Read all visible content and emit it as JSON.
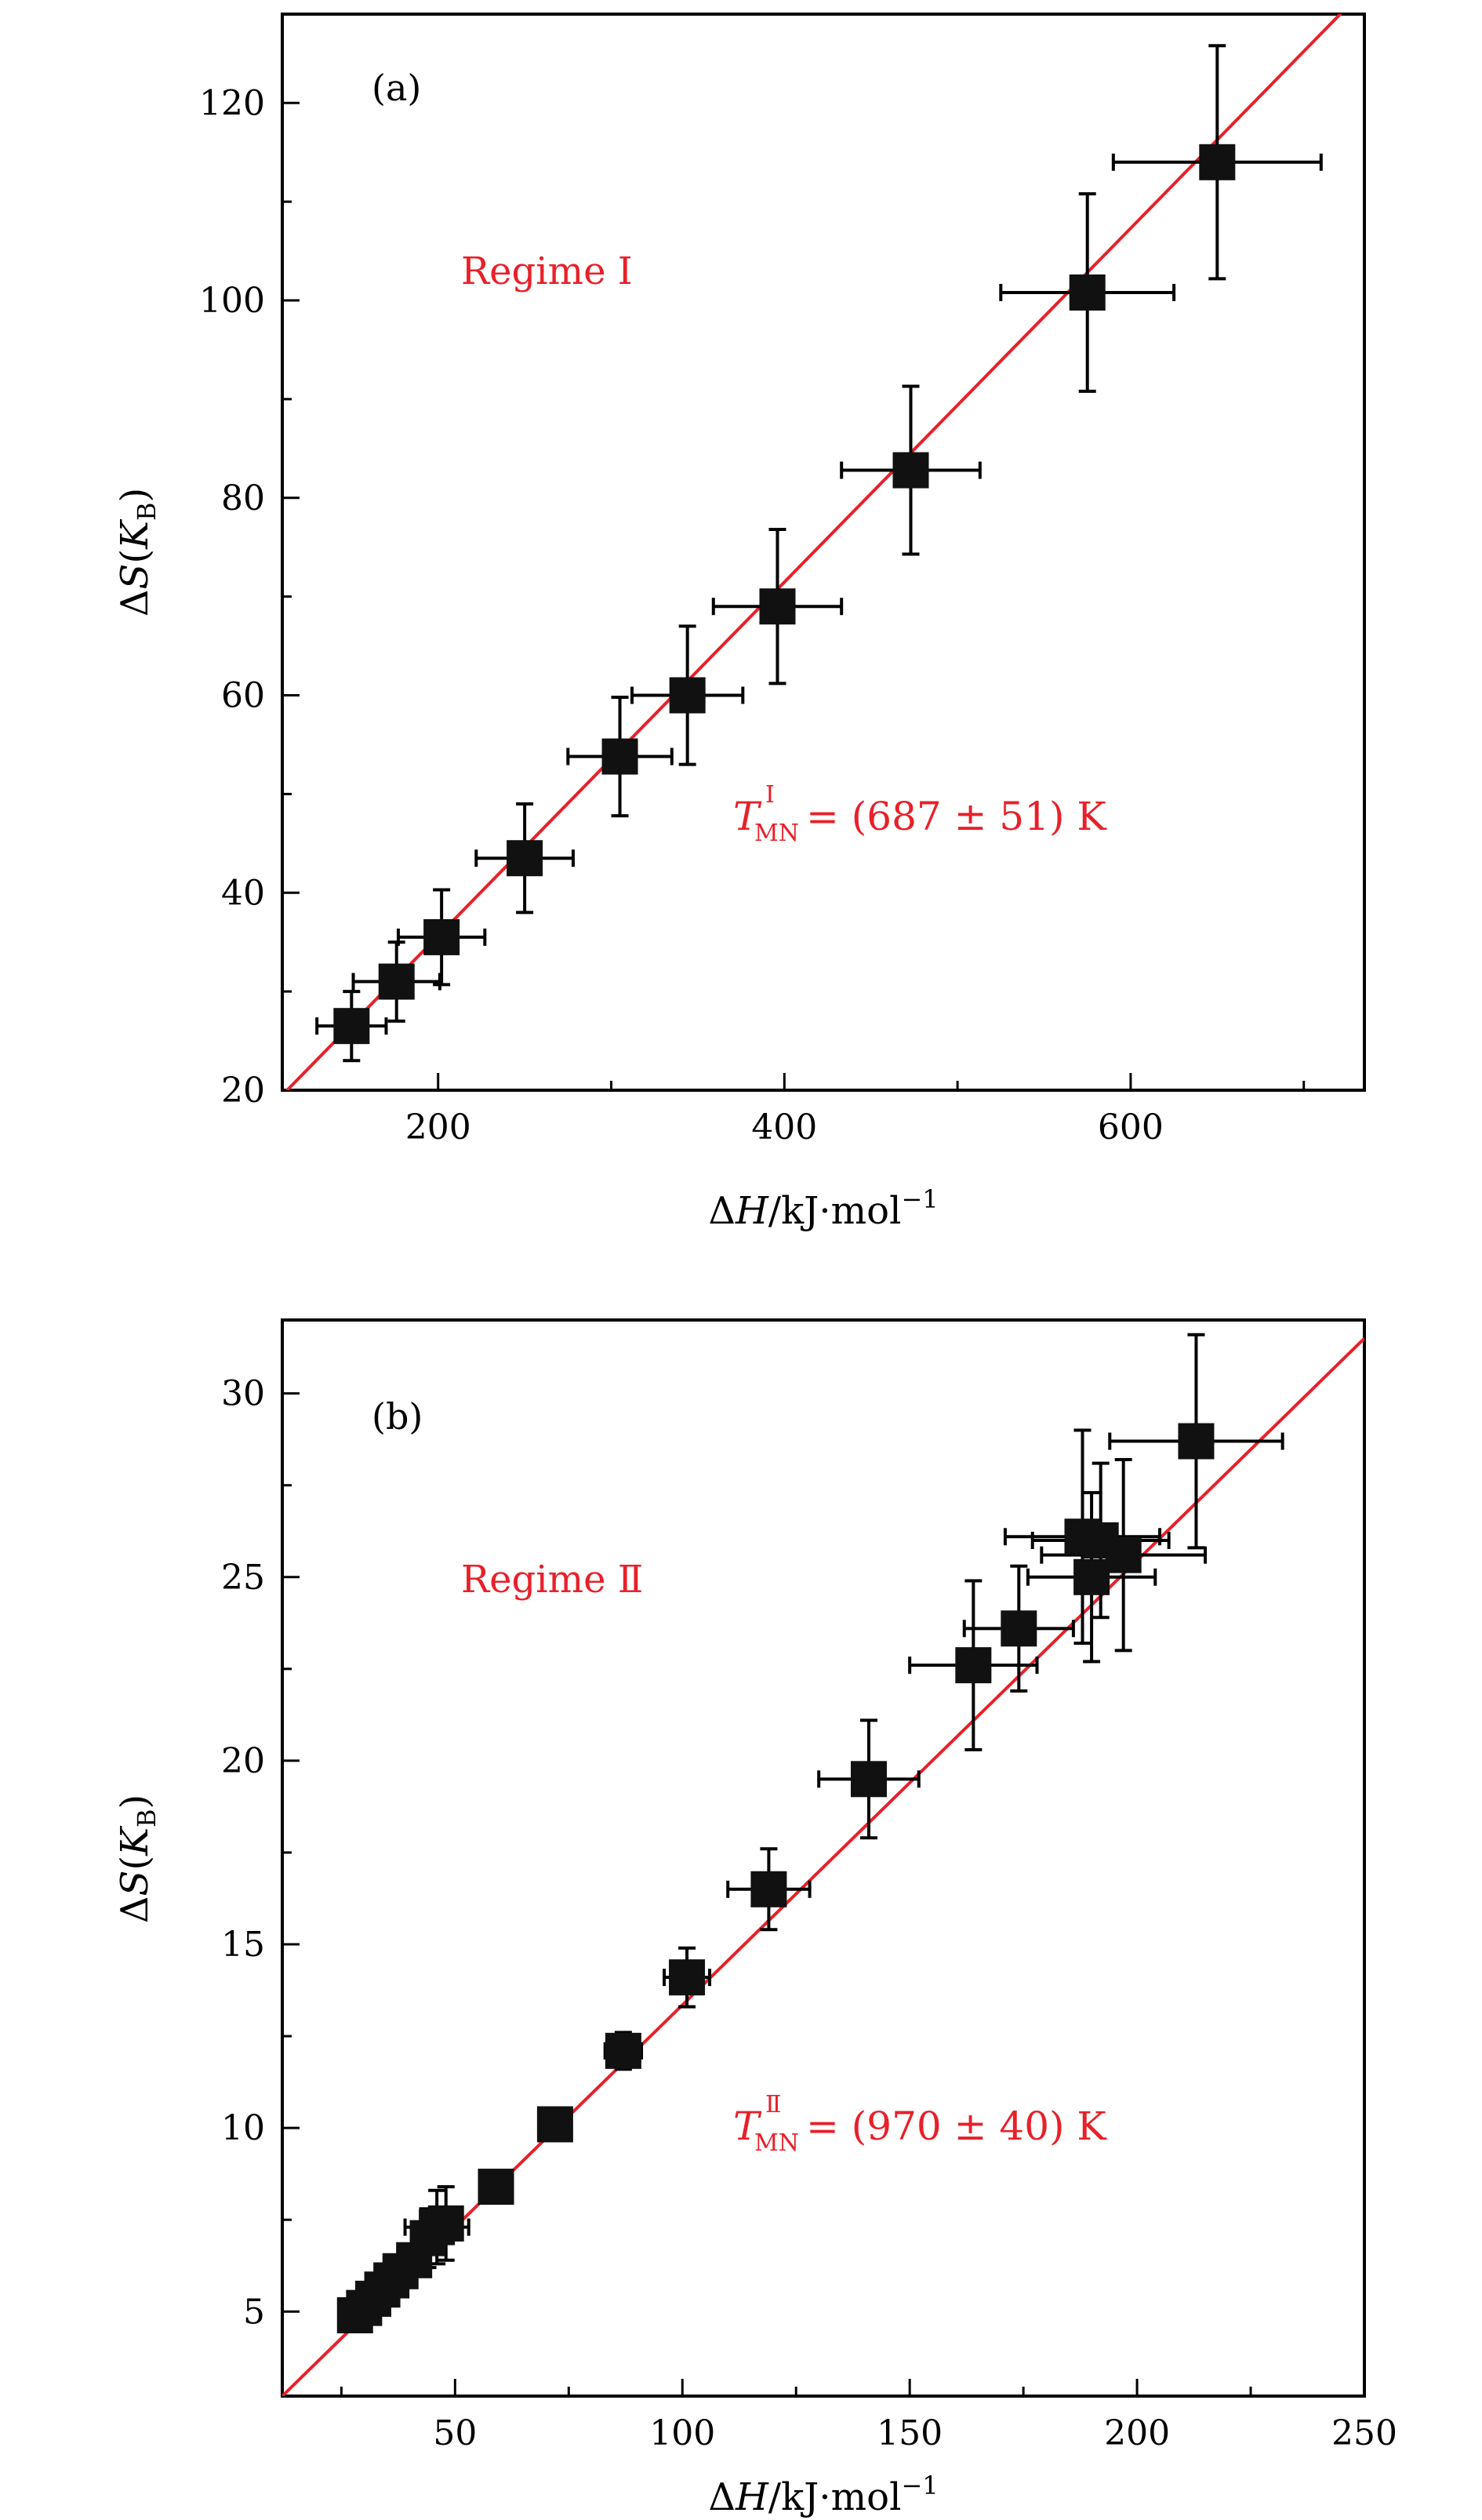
{
  "fit_color": "#e8202a",
  "marker_color": "#111111",
  "chart_data": [
    {
      "type": "scatter",
      "panel_label": "(a)",
      "regime_label": "Regime Ⅰ",
      "annotation": {
        "symbol": "T",
        "superscript": "Ⅰ",
        "subscript": "MN",
        "text": "= (687 ± 51)  K"
      },
      "xlabel": "ΔH/kJ·mol⁻¹",
      "ylabel": "ΔS(K_B)",
      "xlim": [
        110,
        735
      ],
      "ylim": [
        20,
        129
      ],
      "x_major_ticks": [
        200,
        400,
        600
      ],
      "x_minor_ticks": [
        300,
        500,
        700
      ],
      "y_major_ticks": [
        20,
        40,
        60,
        80,
        100,
        120
      ],
      "y_minor_ticks": [
        30,
        50,
        70,
        90,
        110
      ],
      "x_tick_labels": [
        "200",
        "400",
        "600"
      ],
      "y_tick_labels": [
        "20",
        "40",
        "60",
        "80",
        "100",
        "120"
      ],
      "fit_line": {
        "x": [
          110,
          735
        ],
        "y": [
          19.5,
          131.5
        ]
      },
      "points": [
        {
          "x": 150,
          "y": 26.5,
          "xerr": 20,
          "yerr": 3.5
        },
        {
          "x": 176,
          "y": 31.0,
          "xerr": 25,
          "yerr": 4.0
        },
        {
          "x": 202,
          "y": 35.5,
          "xerr": 25,
          "yerr": 4.8
        },
        {
          "x": 250,
          "y": 43.5,
          "xerr": 28,
          "yerr": 5.5
        },
        {
          "x": 305,
          "y": 53.8,
          "xerr": 30,
          "yerr": 6.0
        },
        {
          "x": 344,
          "y": 60.0,
          "xerr": 32,
          "yerr": 7.0
        },
        {
          "x": 396,
          "y": 69.0,
          "xerr": 37,
          "yerr": 7.8
        },
        {
          "x": 473,
          "y": 82.8,
          "xerr": 40,
          "yerr": 8.5
        },
        {
          "x": 575,
          "y": 100.8,
          "xerr": 50,
          "yerr": 10.0
        },
        {
          "x": 650,
          "y": 114.0,
          "xerr": 60,
          "yerr": 11.8
        }
      ]
    },
    {
      "type": "scatter",
      "panel_label": "(b)",
      "regime_label": "Regime Ⅱ",
      "annotation": {
        "symbol": "T",
        "superscript": "Ⅱ",
        "subscript": "MN",
        "text": "= (970 ± 40)  K"
      },
      "xlabel": "ΔH/kJ·mol⁻¹",
      "ylabel": "ΔS(K_B)",
      "xlim": [
        12,
        250
      ],
      "ylim": [
        2.7,
        32
      ],
      "x_major_ticks": [
        50,
        100,
        150,
        200,
        250
      ],
      "x_minor_ticks": [
        25,
        75,
        125,
        175,
        225
      ],
      "y_major_ticks": [
        5,
        10,
        15,
        20,
        25,
        30
      ],
      "y_minor_ticks": [
        7.5,
        12.5,
        17.5,
        22.5,
        27.5
      ],
      "x_tick_labels": [
        "50",
        "100",
        "150",
        "200",
        "250"
      ],
      "y_tick_labels": [
        "5",
        "10",
        "15",
        "20",
        "25",
        "30"
      ],
      "fit_line": {
        "x": [
          12,
          250
        ],
        "y": [
          2.7,
          31.5
        ]
      },
      "points": [
        {
          "x": 28,
          "y": 4.9,
          "xerr": 0,
          "yerr": 0
        },
        {
          "x": 30,
          "y": 5.1,
          "xerr": 0,
          "yerr": 0
        },
        {
          "x": 32,
          "y": 5.35,
          "xerr": 0,
          "yerr": 0
        },
        {
          "x": 34,
          "y": 5.6,
          "xerr": 0,
          "yerr": 0
        },
        {
          "x": 36,
          "y": 5.85,
          "xerr": 0,
          "yerr": 0
        },
        {
          "x": 38,
          "y": 6.1,
          "xerr": 0,
          "yerr": 0
        },
        {
          "x": 41,
          "y": 6.4,
          "xerr": 0,
          "yerr": 0
        },
        {
          "x": 44,
          "y": 7.0,
          "xerr": 0,
          "yerr": 0.8
        },
        {
          "x": 46,
          "y": 7.3,
          "xerr": 7,
          "yerr": 1.0
        },
        {
          "x": 48,
          "y": 7.4,
          "xerr": 0,
          "yerr": 1.0
        },
        {
          "x": 59,
          "y": 8.4,
          "xerr": 0,
          "yerr": 0
        },
        {
          "x": 72,
          "y": 10.1,
          "xerr": 0,
          "yerr": 0
        },
        {
          "x": 87,
          "y": 12.1,
          "xerr": 4,
          "yerr": 0.5
        },
        {
          "x": 101,
          "y": 14.1,
          "xerr": 5,
          "yerr": 0.8
        },
        {
          "x": 119,
          "y": 16.5,
          "xerr": 9,
          "yerr": 1.1
        },
        {
          "x": 141,
          "y": 19.5,
          "xerr": 11,
          "yerr": 1.6
        },
        {
          "x": 164,
          "y": 22.6,
          "xerr": 14,
          "yerr": 2.3
        },
        {
          "x": 174,
          "y": 23.6,
          "xerr": 12,
          "yerr": 1.7
        },
        {
          "x": 188,
          "y": 26.1,
          "xerr": 17,
          "yerr": 2.9
        },
        {
          "x": 190,
          "y": 25.0,
          "xerr": 14,
          "yerr": 2.3
        },
        {
          "x": 192,
          "y": 26.0,
          "xerr": 15,
          "yerr": 2.1
        },
        {
          "x": 197,
          "y": 25.6,
          "xerr": 18,
          "yerr": 2.6
        },
        {
          "x": 213,
          "y": 28.7,
          "xerr": 19,
          "yerr": 2.9
        }
      ]
    }
  ]
}
